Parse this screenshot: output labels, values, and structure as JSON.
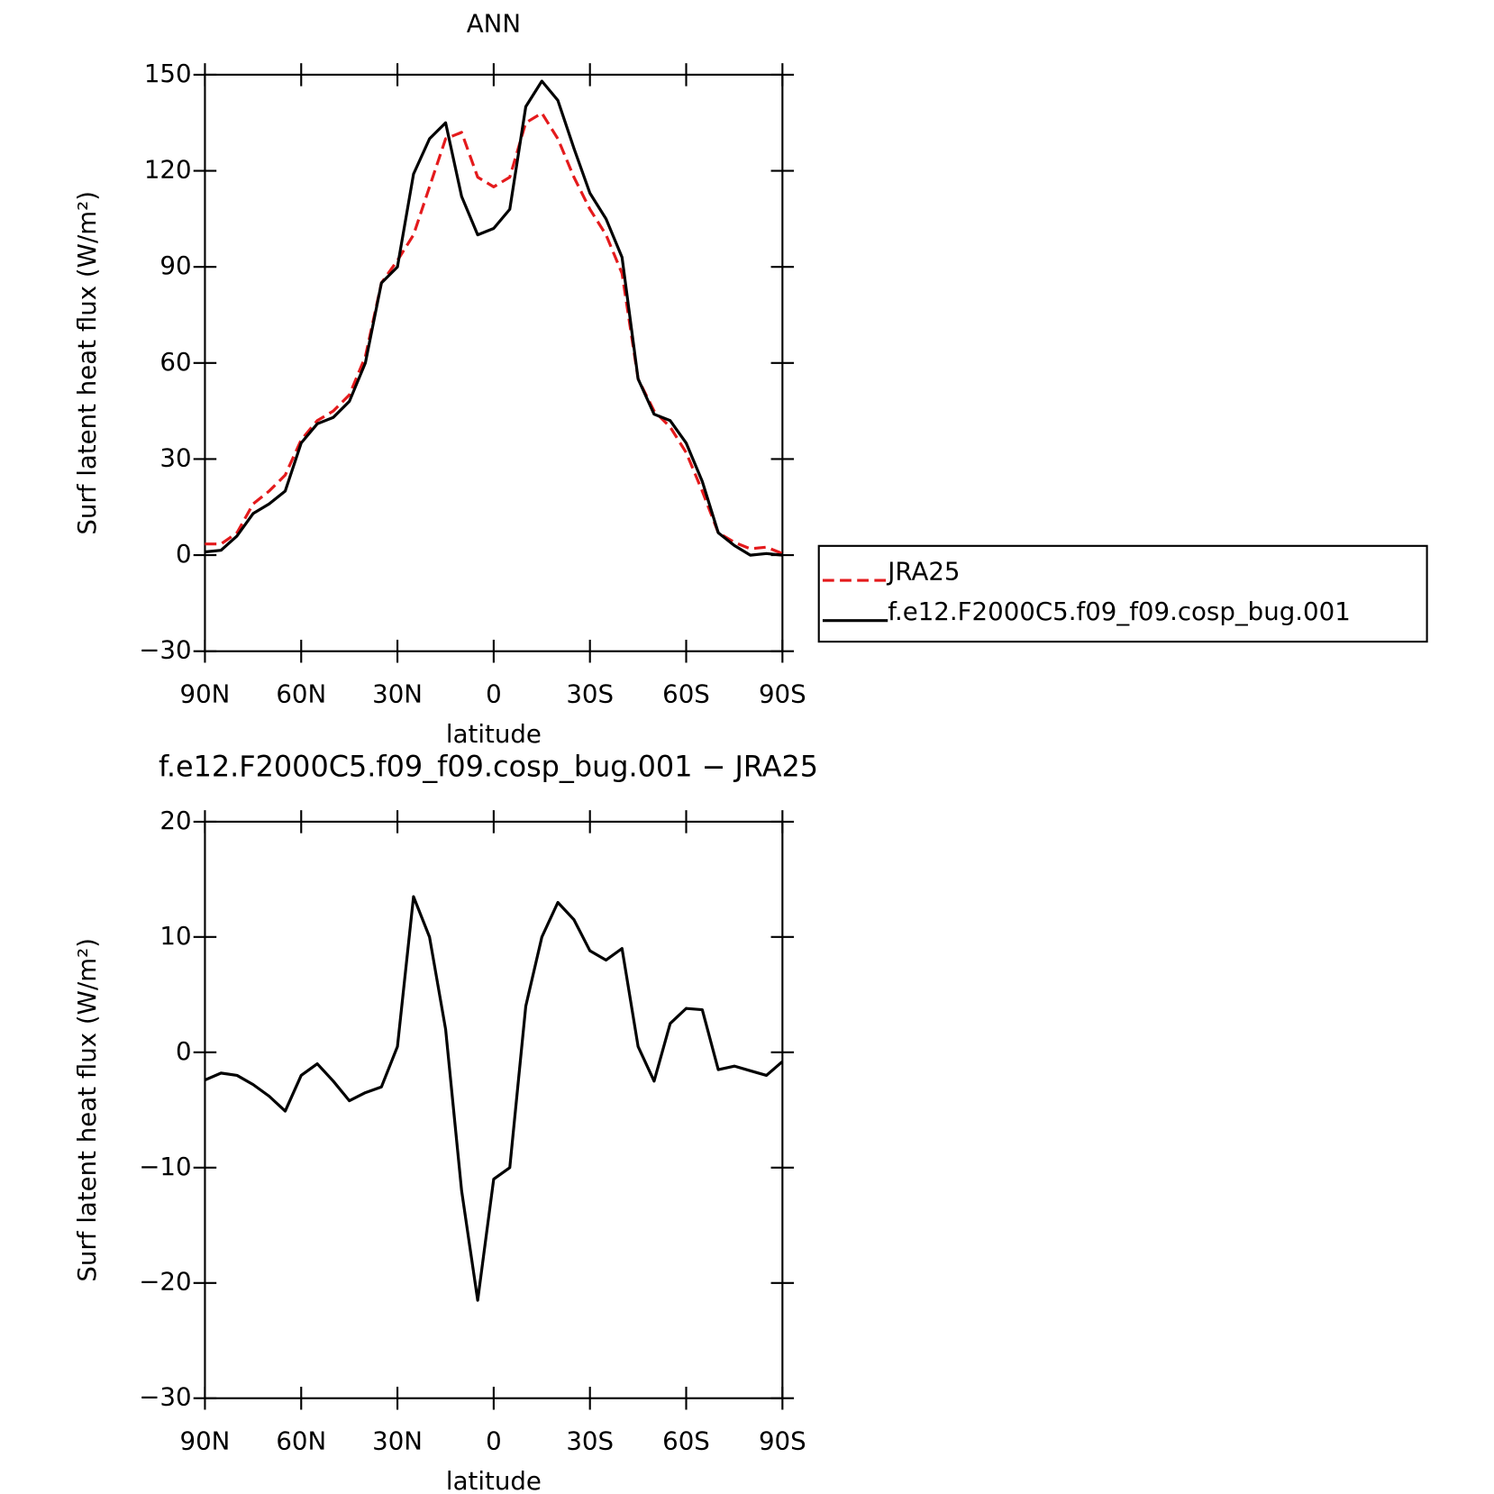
{
  "chart_data": [
    {
      "type": "line",
      "title": "ANN",
      "xlabel": "latitude",
      "ylabel": "Surf latent heat flux (W/m²)",
      "x": [
        90,
        85,
        80,
        75,
        70,
        65,
        60,
        55,
        50,
        45,
        40,
        35,
        30,
        25,
        20,
        15,
        10,
        5,
        0,
        -5,
        -10,
        -15,
        -20,
        -25,
        -30,
        -35,
        -40,
        -45,
        -50,
        -55,
        -60,
        -65,
        -70,
        -75,
        -80,
        -85,
        -90
      ],
      "series": [
        {
          "name": "JRA25",
          "color": "#e41a1c",
          "linestyle": "dashed",
          "values": [
            3.5,
            3.5,
            7,
            16,
            20,
            25,
            36,
            42,
            45,
            50,
            62,
            85,
            92,
            100,
            115,
            130,
            132,
            118,
            115,
            118,
            135,
            138,
            130,
            118,
            108,
            100,
            88,
            55,
            45,
            40,
            32,
            20,
            7,
            4,
            2,
            2.5,
            0.5
          ]
        },
        {
          "name": "f.e12.F2000C5.f09_f09.cosp_bug.001",
          "color": "#000000",
          "linestyle": "solid",
          "values": [
            1,
            1.5,
            6,
            13,
            16,
            20,
            35,
            41,
            43,
            48,
            60,
            85,
            90,
            119,
            130,
            135,
            112,
            100,
            102,
            108,
            140,
            148,
            142,
            127,
            113,
            105,
            93,
            55,
            44,
            42,
            35,
            23,
            7,
            3,
            0,
            0.5,
            0
          ]
        }
      ],
      "xlim": [
        90,
        -90
      ],
      "xticks": [
        {
          "value": 90,
          "label": "90N"
        },
        {
          "value": 60,
          "label": "60N"
        },
        {
          "value": 30,
          "label": "30N"
        },
        0,
        {
          "value": -30,
          "label": "30S"
        },
        {
          "value": -60,
          "label": "60S"
        },
        {
          "value": -90,
          "label": "90S"
        }
      ],
      "ylim": [
        -30,
        150
      ],
      "yticks": [
        {
          "value": -30,
          "label": "−30"
        },
        0,
        30,
        60,
        90,
        120,
        150
      ],
      "legend": "right"
    },
    {
      "type": "line",
      "title": "f.e12.F2000C5.f09_f09.cosp_bug.001 − JRA25",
      "xlabel": "latitude",
      "ylabel": "Surf latent heat flux (W/m²)",
      "x": [
        90,
        85,
        80,
        75,
        70,
        65,
        60,
        55,
        50,
        45,
        40,
        35,
        30,
        25,
        20,
        15,
        10,
        5,
        0,
        -5,
        -10,
        -15,
        -20,
        -25,
        -30,
        -35,
        -40,
        -45,
        -50,
        -55,
        -60,
        -65,
        -70,
        -75,
        -80,
        -85,
        -90
      ],
      "series": [
        {
          "color": "#000000",
          "linestyle": "solid",
          "values": [
            -2.4,
            -1.8,
            -2,
            -2.8,
            -3.8,
            -5.1,
            -2,
            -1,
            -2.5,
            -4.2,
            -3.5,
            -3,
            0.5,
            13.5,
            10,
            2,
            -12,
            -21.5,
            -11,
            -10,
            4,
            10,
            13,
            11.5,
            8.8,
            8,
            9,
            0.5,
            -2.5,
            2.5,
            3.8,
            3.7,
            -1.5,
            -1.2,
            -1.6,
            -2,
            -0.8
          ]
        }
      ],
      "xlim": [
        90,
        -90
      ],
      "xticks": [
        {
          "value": 90,
          "label": "90N"
        },
        {
          "value": 60,
          "label": "60N"
        },
        {
          "value": 30,
          "label": "30N"
        },
        0,
        {
          "value": -30,
          "label": "30S"
        },
        {
          "value": -60,
          "label": "60S"
        },
        {
          "value": -90,
          "label": "90S"
        }
      ],
      "ylim": [
        -30,
        20
      ],
      "yticks": [
        {
          "value": -30,
          "label": "−30"
        },
        {
          "value": -20,
          "label": "−20"
        },
        {
          "value": -10,
          "label": "−10"
        },
        0,
        10,
        20
      ]
    }
  ]
}
